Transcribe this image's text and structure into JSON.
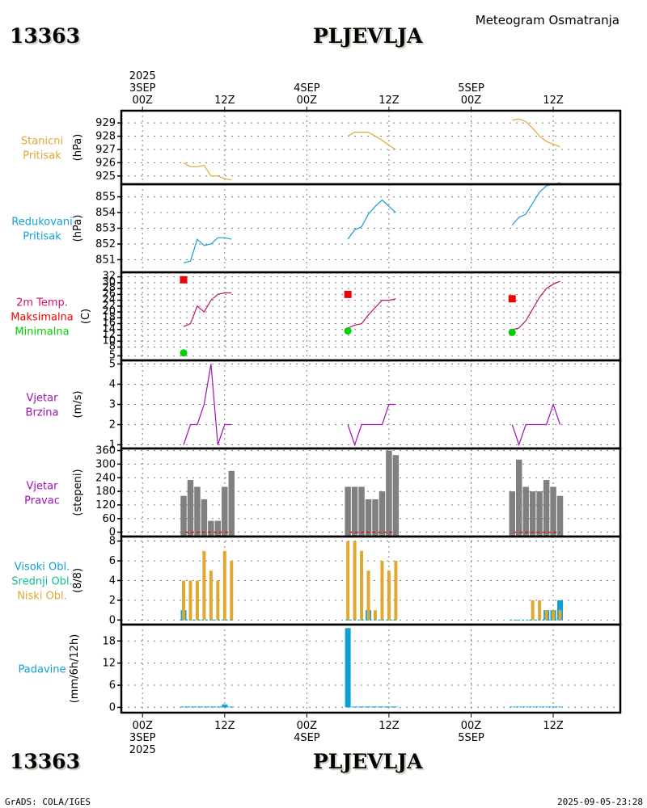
{
  "header": {
    "station_id": "13363",
    "station_name": "PLJEVLJA",
    "subtitle": "Meteogram Osmatranja"
  },
  "footer": {
    "station_id": "13363",
    "station_name": "PLJEVLJA",
    "credit": "GrADS: COLA/IGES",
    "timestamp": "2025-09-05-23:28"
  },
  "time_axis": {
    "top_ticks": [
      {
        "hour": 0,
        "lines": [
          "2025",
          "3SEP",
          "00Z"
        ]
      },
      {
        "hour": 12,
        "lines": [
          "12Z"
        ]
      },
      {
        "hour": 24,
        "lines": [
          "4SEP",
          "00Z"
        ]
      },
      {
        "hour": 36,
        "lines": [
          "12Z"
        ]
      },
      {
        "hour": 48,
        "lines": [
          "5SEP",
          "00Z"
        ]
      },
      {
        "hour": 60,
        "lines": [
          "12Z"
        ]
      }
    ],
    "bottom_ticks": [
      {
        "hour": 0,
        "lines": [
          "00Z",
          "3SEP",
          "2025"
        ]
      },
      {
        "hour": 12,
        "lines": [
          "12Z"
        ]
      },
      {
        "hour": 24,
        "lines": [
          "00Z",
          "4SEP"
        ]
      },
      {
        "hour": 36,
        "lines": [
          "12Z"
        ]
      },
      {
        "hour": 48,
        "lines": [
          "00Z",
          "5SEP"
        ]
      },
      {
        "hour": 60,
        "lines": [
          "12Z"
        ]
      }
    ],
    "range_hours": [
      -3.1,
      69.8
    ]
  },
  "chart_data": [
    {
      "id": "station-pressure",
      "type": "line",
      "labels": [
        {
          "text": "Stanicni",
          "color": "#e0a830"
        },
        {
          "text": "Pritisak",
          "color": "#e0a830"
        }
      ],
      "ylabel": "(hPa)",
      "color": "#e0a830",
      "yticks": [
        925,
        926,
        927,
        928,
        929
      ],
      "ylim": [
        924.5,
        929.8
      ],
      "segments": [
        {
          "x": [
            6,
            7,
            8,
            9,
            10,
            11,
            12,
            13
          ],
          "y": [
            926.0,
            925.7,
            925.7,
            925.8,
            925.0,
            925.0,
            924.8,
            924.7
          ]
        },
        {
          "x": [
            30,
            31,
            32,
            33,
            34,
            35,
            36,
            37
          ],
          "y": [
            928.0,
            928.3,
            928.3,
            928.3,
            928.0,
            927.7,
            927.3,
            927.0
          ]
        },
        {
          "x": [
            54,
            55,
            56,
            57,
            58,
            59,
            60,
            61
          ],
          "y": [
            929.2,
            929.3,
            929.1,
            928.6,
            928.0,
            927.6,
            927.4,
            927.2
          ]
        }
      ]
    },
    {
      "id": "reduced-pressure",
      "type": "line",
      "labels": [
        {
          "text": "Redukovani",
          "color": "#10a0d8"
        },
        {
          "text": "Pritisak",
          "color": "#10a0d8"
        }
      ],
      "ylabel": "(hPa)",
      "color": "#10a0d8",
      "yticks": [
        851,
        852,
        853,
        854,
        855
      ],
      "ylim": [
        850.3,
        855.7
      ],
      "segments": [
        {
          "x": [
            6,
            7,
            8,
            9,
            10,
            11,
            12,
            13
          ],
          "y": [
            850.8,
            850.9,
            852.3,
            851.9,
            852.0,
            852.4,
            852.4,
            852.3
          ]
        },
        {
          "x": [
            30,
            31,
            32,
            33,
            34,
            35,
            36,
            37
          ],
          "y": [
            852.3,
            852.9,
            853.1,
            853.9,
            854.4,
            854.8,
            854.4,
            854.0
          ]
        },
        {
          "x": [
            54,
            55,
            56,
            57,
            58,
            59,
            60,
            61
          ],
          "y": [
            853.2,
            853.7,
            853.9,
            854.6,
            855.3,
            855.7,
            855.8,
            855.9
          ]
        }
      ]
    },
    {
      "id": "temperature",
      "type": "line",
      "labels": [
        {
          "text": "2m Temp.",
          "color": "#d01070"
        },
        {
          "text": "Maksimalna",
          "color": "#f00000"
        },
        {
          "text": "Minimalna",
          "color": "#00d000"
        }
      ],
      "ylabel": "(C)",
      "color": "#c0106a",
      "yticks": [
        5,
        8,
        10,
        12,
        14,
        16,
        18,
        20,
        22,
        24,
        26,
        28,
        30,
        32
      ],
      "ylim": [
        4,
        33
      ],
      "segments": [
        {
          "x": [
            6,
            7,
            8,
            9,
            10,
            11,
            12,
            13
          ],
          "y": [
            15.0,
            16.0,
            22.0,
            20.0,
            24.0,
            26.0,
            26.5,
            26.5
          ]
        },
        {
          "x": [
            30,
            31,
            32,
            33,
            34,
            35,
            36,
            37
          ],
          "y": [
            14.5,
            15.5,
            16.0,
            19.0,
            21.5,
            24.0,
            24.0,
            24.5
          ]
        },
        {
          "x": [
            54,
            55,
            56,
            57,
            58,
            59,
            60,
            61
          ],
          "y": [
            14.0,
            14.5,
            17.0,
            21.0,
            25.0,
            28.0,
            29.5,
            30.5
          ]
        }
      ],
      "maximum": {
        "color": "#f00000",
        "points": [
          {
            "x": 6,
            "y": 31.0
          },
          {
            "x": 30,
            "y": 26.0
          },
          {
            "x": 54,
            "y": 24.5
          }
        ]
      },
      "minimum": {
        "color": "#00d000",
        "points": [
          {
            "x": 6,
            "y": 6.0
          },
          {
            "x": 30,
            "y": 13.5
          },
          {
            "x": 54,
            "y": 13.0
          }
        ]
      }
    },
    {
      "id": "wind-speed",
      "type": "line",
      "labels": [
        {
          "text": "Vjetar",
          "color": "#a010b8"
        },
        {
          "text": "Brzina",
          "color": "#a010b8"
        }
      ],
      "ylabel": "(m/s)",
      "color": "#a010b8",
      "yticks": [
        1,
        2,
        3,
        4,
        5
      ],
      "ylim": [
        0.9,
        5.1
      ],
      "segments": [
        {
          "x": [
            6,
            7,
            8,
            9,
            10,
            11,
            12,
            13
          ],
          "y": [
            1,
            2,
            2,
            3,
            5,
            1,
            2,
            2
          ]
        },
        {
          "x": [
            30,
            31,
            32,
            33,
            34,
            35,
            36,
            37
          ],
          "y": [
            2,
            1,
            2,
            2,
            2,
            2,
            3,
            3
          ]
        },
        {
          "x": [
            54,
            55,
            56,
            57,
            58,
            59,
            60,
            61
          ],
          "y": [
            2,
            1,
            2,
            2,
            2,
            2,
            3,
            2
          ]
        }
      ]
    },
    {
      "id": "wind-direction",
      "type": "bar",
      "labels": [
        {
          "text": "Vjetar",
          "color": "#a010b8"
        },
        {
          "text": "Pravac",
          "color": "#a010b8"
        }
      ],
      "ylabel": "(stepeni)",
      "color": "#808080",
      "yticks": [
        0,
        60,
        120,
        180,
        240,
        300,
        360
      ],
      "ylim": [
        -12,
        362
      ],
      "groups": [
        {
          "x": [
            6,
            7,
            8,
            9,
            10,
            11,
            12,
            13
          ],
          "y": [
            160,
            230,
            200,
            145,
            50,
            50,
            200,
            270
          ]
        },
        {
          "x": [
            30,
            31,
            32,
            33,
            34,
            35,
            36,
            37
          ],
          "y": [
            200,
            200,
            200,
            145,
            145,
            180,
            360,
            340
          ]
        },
        {
          "x": [
            54,
            55,
            56,
            57,
            58,
            59,
            60,
            61
          ],
          "y": [
            180,
            320,
            200,
            180,
            180,
            230,
            200,
            160
          ]
        }
      ]
    },
    {
      "id": "cloud-cover",
      "type": "bar",
      "labels": [
        {
          "text": "Visoki Obl.",
          "color": "#10a0d8"
        },
        {
          "text": "Srednji Obl.",
          "color": "#10c090"
        },
        {
          "text": "Niski Obl.",
          "color": "#e0a830"
        }
      ],
      "ylabel": "(8/8)",
      "yticks": [
        0,
        2,
        4,
        6,
        8
      ],
      "ylim": [
        -0.3,
        8.3
      ],
      "series": [
        {
          "name": "Visoki Obl.",
          "color": "#10a0d8",
          "groups": [
            {
              "x": [
                6,
                7,
                8,
                9,
                10,
                11,
                12,
                13
              ],
              "y": [
                1,
                0,
                0,
                0,
                0,
                0,
                0,
                0
              ]
            },
            {
              "x": [
                30,
                31,
                32,
                33,
                34,
                35,
                36,
                37
              ],
              "y": [
                0,
                0,
                0,
                1,
                0,
                0,
                0,
                0
              ]
            },
            {
              "x": [
                54,
                55,
                56,
                57,
                58,
                59,
                60,
                61
              ],
              "y": [
                0,
                0,
                0,
                0,
                0,
                1,
                1,
                2
              ]
            }
          ]
        },
        {
          "name": "Niski Obl.",
          "color": "#e0a830",
          "groups": [
            {
              "x": [
                6,
                7,
                8,
                9,
                10,
                11,
                12,
                13
              ],
              "y": [
                4,
                4,
                4,
                7,
                5,
                4,
                7,
                6
              ]
            },
            {
              "x": [
                30,
                31,
                32,
                33,
                34,
                35,
                36,
                37
              ],
              "y": [
                8,
                8,
                7,
                5,
                1,
                6,
                5,
                6
              ]
            },
            {
              "x": [
                54,
                55,
                56,
                57,
                58,
                59,
                60,
                61
              ],
              "y": [
                0,
                0,
                0,
                2,
                2,
                1,
                1,
                1
              ]
            }
          ]
        }
      ]
    },
    {
      "id": "precipitation",
      "type": "bar",
      "labels": [
        {
          "text": "Padavine",
          "color": "#10a0d8"
        }
      ],
      "ylabel": "(mm/6h/12h)",
      "color": "#10a0d8",
      "yticks": [
        0,
        6,
        12,
        18
      ],
      "ylim": [
        -1,
        22
      ],
      "groups": [
        {
          "x": [
            6,
            7,
            8,
            9,
            10,
            11,
            12,
            13
          ],
          "y": [
            0,
            0,
            0,
            0,
            0,
            0,
            0.8,
            0
          ]
        },
        {
          "x": [
            30,
            31,
            32,
            33,
            34,
            35,
            36,
            37
          ],
          "y": [
            21.5,
            0,
            0,
            0,
            0,
            0,
            0,
            0
          ]
        },
        {
          "x": [
            54,
            55,
            56,
            57,
            58,
            59,
            60,
            61
          ],
          "y": [
            0,
            0,
            0,
            0,
            0,
            0,
            0,
            0
          ]
        }
      ]
    }
  ]
}
